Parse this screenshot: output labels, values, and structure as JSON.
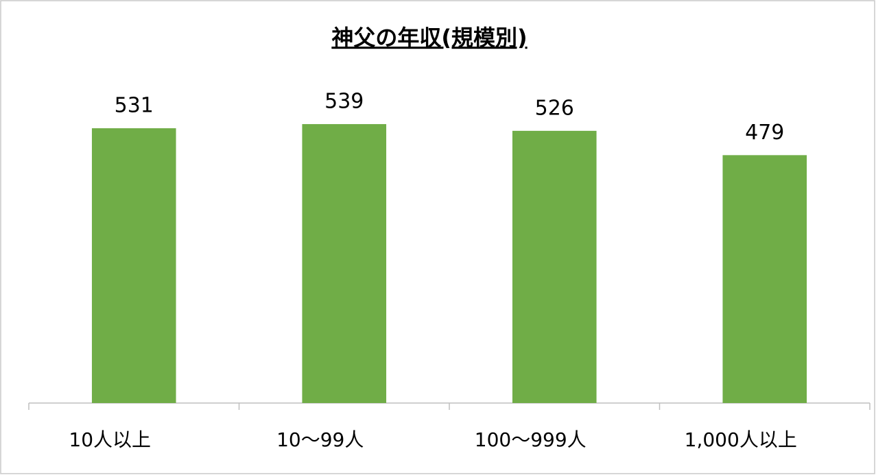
{
  "chart_data": {
    "type": "bar",
    "title": "神父の年収(規模別)",
    "categories": [
      "10人以上",
      "10〜99人",
      "100〜999人",
      "1,000人以上"
    ],
    "values": [
      531,
      539,
      526,
      479
    ],
    "color": "#70ad47",
    "ylim": [
      0,
      600
    ]
  }
}
